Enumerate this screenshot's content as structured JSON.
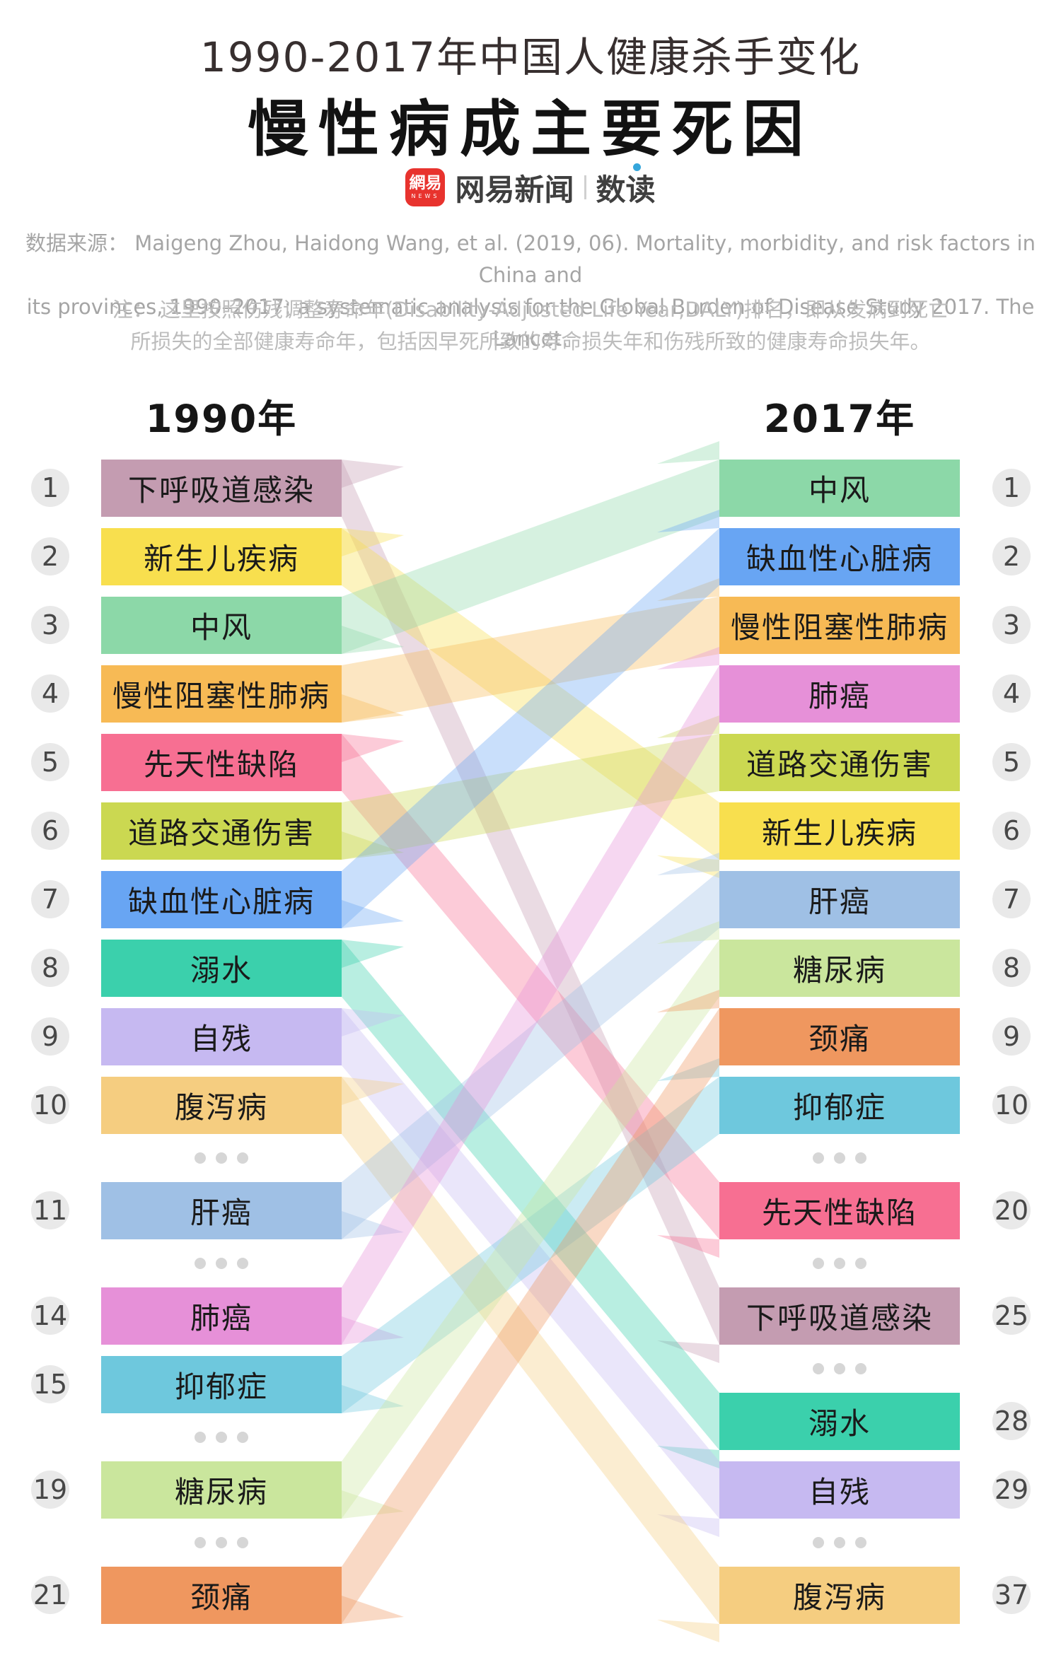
{
  "title": {
    "line1": "1990-2017年中国人健康杀手变化",
    "line2": "慢性病成主要死因"
  },
  "logo": {
    "icon_text": "網易",
    "icon_sub": "NEWS",
    "brand": "网易新闻",
    "section": "数读",
    "colors": {
      "icon_red": "#e8332e",
      "accent_blue": "#35a6db"
    }
  },
  "source_lines": [
    "数据来源：  Maigeng Zhou, Haidong Wang, et al. (2019, 06). Mortality, morbidity, and risk factors in China and",
    "its provinces, 1990–2017: a systematic analysis for the Global Burden of Disease Study 2017. The Lancet."
  ],
  "note_lines": [
    "注：  这里按照伤残调整寿命年(Disability-Adjusted Life Year,DALY)排名，即从发病到死亡",
    "所损失的全部健康寿命年，包括因早死所致的寿命损失年和伤残所致的健康寿命损失年。"
  ],
  "chart_data": {
    "type": "line",
    "variant": "bump-ranking-flow",
    "title": "1990-2017年中国人健康杀手变化：慢性病成主要死因",
    "column_headers": {
      "left": "1990年",
      "right": "2017年"
    },
    "ranking_metric": "DALY (伤残调整寿命年)",
    "causes": [
      {
        "name": "下呼吸道感染",
        "color": "#c49cb1",
        "rank_1990": 1,
        "rank_2017": 25
      },
      {
        "name": "新生儿疾病",
        "color": "#f8df4e",
        "rank_1990": 2,
        "rank_2017": 6
      },
      {
        "name": "中风",
        "color": "#8cd8a8",
        "rank_1990": 3,
        "rank_2017": 1
      },
      {
        "name": "慢性阻塞性肺病",
        "color": "#f7ba55",
        "rank_1990": 4,
        "rank_2017": 3
      },
      {
        "name": "先天性缺陷",
        "color": "#f76f92",
        "rank_1990": 5,
        "rank_2017": 20
      },
      {
        "name": "道路交通伤害",
        "color": "#cbd851",
        "rank_1990": 6,
        "rank_2017": 5
      },
      {
        "name": "缺血性心脏病",
        "color": "#68a5f3",
        "rank_1990": 7,
        "rank_2017": 2
      },
      {
        "name": "溺水",
        "color": "#3bd0ac",
        "rank_1990": 8,
        "rank_2017": 28
      },
      {
        "name": "自残",
        "color": "#c6b9f1",
        "rank_1990": 9,
        "rank_2017": 29
      },
      {
        "name": "腹泻病",
        "color": "#f5cd80",
        "rank_1990": 10,
        "rank_2017": 37
      },
      {
        "name": "肝癌",
        "color": "#9fc0e5",
        "rank_1990": 11,
        "rank_2017": 7
      },
      {
        "name": "肺癌",
        "color": "#e690d8",
        "rank_1990": 14,
        "rank_2017": 4
      },
      {
        "name": "抑郁症",
        "color": "#6ec8dd",
        "rank_1990": 15,
        "rank_2017": 10
      },
      {
        "name": "糖尿病",
        "color": "#cae69d",
        "rank_1990": 19,
        "rank_2017": 8
      },
      {
        "name": "颈痛",
        "color": "#ef975f",
        "rank_1990": 21,
        "rank_2017": 9
      }
    ],
    "left_sequence": [
      1,
      2,
      3,
      4,
      5,
      6,
      7,
      8,
      9,
      10,
      "dots",
      11,
      "dots",
      14,
      15,
      "dots",
      19,
      "dots",
      21
    ],
    "right_sequence": [
      1,
      2,
      3,
      4,
      5,
      6,
      7,
      8,
      9,
      10,
      "dots",
      20,
      "dots",
      25,
      "dots",
      28,
      29,
      "dots",
      37
    ],
    "palette": {
      "circle_bg": "#e9e9e9",
      "dots_gray": "#d6d6d6",
      "ribbon_opacity": 0.36
    }
  }
}
